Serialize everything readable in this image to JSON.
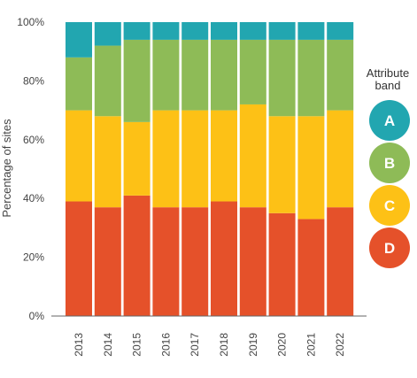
{
  "chart_data": {
    "type": "bar",
    "stacked": true,
    "categories": [
      "2013",
      "2014",
      "2015",
      "2016",
      "2017",
      "2018",
      "2019",
      "2020",
      "2021",
      "2022"
    ],
    "series": [
      {
        "name": "D",
        "color": "#e5512a",
        "values": [
          39,
          37,
          41,
          37,
          37,
          39,
          37,
          35,
          33,
          37
        ]
      },
      {
        "name": "C",
        "color": "#fdc116",
        "values": [
          31,
          31,
          25,
          33,
          33,
          31,
          35,
          33,
          35,
          33
        ]
      },
      {
        "name": "B",
        "color": "#8ebb57",
        "values": [
          18,
          24,
          28,
          24,
          24,
          24,
          22,
          26,
          26,
          24
        ]
      },
      {
        "name": "A",
        "color": "#22a6b0",
        "values": [
          12,
          8,
          6,
          6,
          6,
          6,
          6,
          6,
          6,
          6
        ]
      }
    ],
    "ylabel": "Percentage of sites",
    "ylim": [
      0,
      100
    ],
    "yticks": [
      "0%",
      "20%",
      "40%",
      "60%",
      "80%",
      "100%"
    ],
    "legend": {
      "title_lines": [
        "Attribute",
        "band"
      ],
      "placement": "right"
    },
    "grid": false
  }
}
